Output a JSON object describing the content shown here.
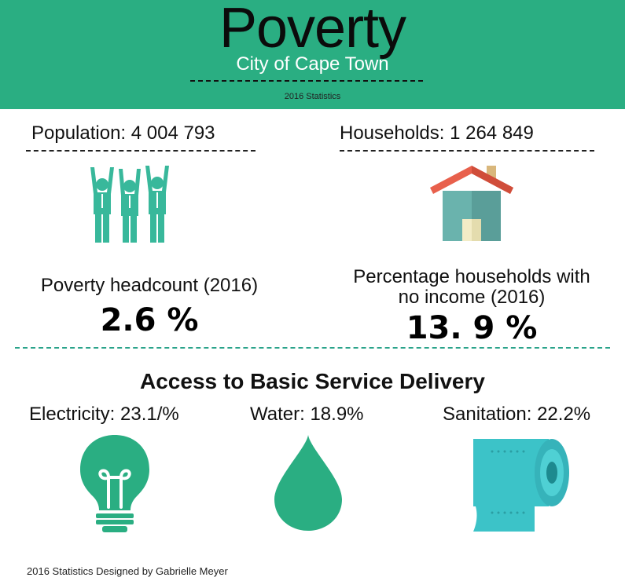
{
  "header": {
    "title": "Poverty",
    "subtitle": "City of Cape Town",
    "year_label": "2016 Statistics",
    "bg_color": "#2aae82"
  },
  "population": {
    "label": "Population: 4 004 793",
    "icon": "people-celebrating-icon"
  },
  "households": {
    "label": "Households: 1 264 849",
    "icon": "house-icon"
  },
  "poverty_headcount": {
    "label": "Poverty headcount (2016)",
    "value": "2.6 %"
  },
  "no_income": {
    "label_line1": "Percentage households with",
    "label_line2": "no income (2016)",
    "value": "13. 9 %"
  },
  "services": {
    "title": "Access to Basic Service Delivery",
    "electricity": {
      "label": "Electricity: 23.1/%",
      "icon": "lightbulb-icon"
    },
    "water": {
      "label": "Water: 18.9%",
      "icon": "water-drop-icon"
    },
    "sanitation": {
      "label": "Sanitation: 22.2%",
      "icon": "toilet-paper-icon"
    }
  },
  "footer": {
    "credit": "2016 Statistics Designed by Gabrielle Meyer"
  },
  "colors": {
    "accent_green": "#2aae82",
    "icon_teal": "#38b89b",
    "roof_red": "#e8604c",
    "house_teal": "#6ab3ad",
    "paper_cyan": "#3cc3c8"
  }
}
